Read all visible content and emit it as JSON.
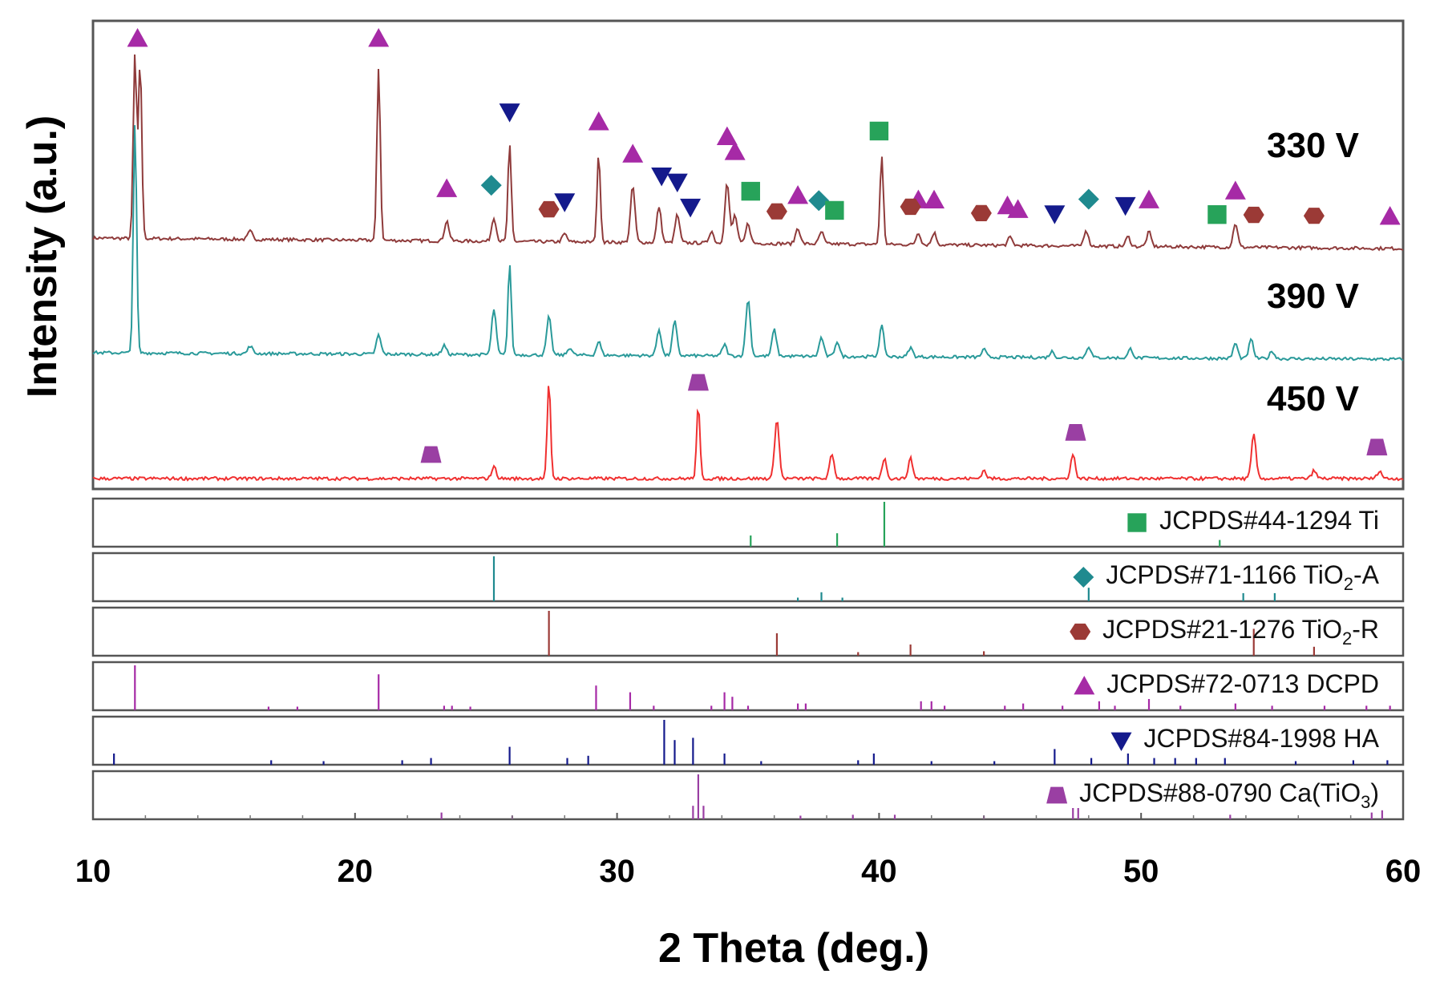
{
  "chart_data": {
    "type": "line",
    "title": "",
    "xlabel": "2 Theta (deg.)",
    "ylabel": "Intensity (a.u.)",
    "xlim": [
      10,
      60
    ],
    "x_ticks": [
      10,
      20,
      30,
      40,
      50,
      60
    ],
    "colors": {
      "330 V": "#8f3b3b",
      "390 V": "#2a9a9a",
      "450 V": "#f03030",
      "Ti": "#27a35a",
      "TiO2-A": "#1f8a8f",
      "TiO2-R": "#9b3a36",
      "DCPD": "#a62aa6",
      "HA": "#141a8c",
      "CaTiO3": "#9a3fa3"
    },
    "series": [
      {
        "name": "330 V",
        "peaks": [
          [
            11.6,
            230
          ],
          [
            11.8,
            220
          ],
          [
            16.0,
            10
          ],
          [
            20.9,
            215
          ],
          [
            23.5,
            25
          ],
          [
            25.3,
            30
          ],
          [
            25.9,
            120
          ],
          [
            28.0,
            10
          ],
          [
            29.3,
            110
          ],
          [
            30.6,
            70
          ],
          [
            31.6,
            45
          ],
          [
            32.3,
            35
          ],
          [
            33.6,
            15
          ],
          [
            34.2,
            75
          ],
          [
            34.5,
            35
          ],
          [
            35.0,
            25
          ],
          [
            36.9,
            20
          ],
          [
            37.8,
            15
          ],
          [
            40.1,
            110
          ],
          [
            41.5,
            15
          ],
          [
            42.1,
            15
          ],
          [
            45.0,
            10
          ],
          [
            47.9,
            20
          ],
          [
            49.5,
            12
          ],
          [
            50.3,
            18
          ],
          [
            53.6,
            30
          ]
        ]
      },
      {
        "name": "390 V",
        "peaks": [
          [
            11.6,
            300
          ],
          [
            16.0,
            10
          ],
          [
            20.9,
            25
          ],
          [
            23.4,
            12
          ],
          [
            25.3,
            60
          ],
          [
            25.9,
            120
          ],
          [
            27.4,
            50
          ],
          [
            28.2,
            10
          ],
          [
            29.3,
            18
          ],
          [
            31.6,
            35
          ],
          [
            32.2,
            45
          ],
          [
            34.1,
            15
          ],
          [
            35.0,
            75
          ],
          [
            36.0,
            35
          ],
          [
            37.8,
            25
          ],
          [
            38.4,
            20
          ],
          [
            40.1,
            40
          ],
          [
            41.2,
            12
          ],
          [
            44.0,
            10
          ],
          [
            46.6,
            8
          ],
          [
            48.0,
            15
          ],
          [
            49.6,
            12
          ],
          [
            53.6,
            20
          ],
          [
            54.2,
            25
          ],
          [
            55.0,
            10
          ]
        ]
      },
      {
        "name": "450 V",
        "peaks": [
          [
            25.3,
            15
          ],
          [
            27.4,
            120
          ],
          [
            33.1,
            90
          ],
          [
            36.1,
            75
          ],
          [
            38.2,
            30
          ],
          [
            40.2,
            25
          ],
          [
            41.2,
            25
          ],
          [
            44.0,
            10
          ],
          [
            47.4,
            30
          ],
          [
            54.3,
            55
          ],
          [
            56.6,
            10
          ],
          [
            59.1,
            10
          ]
        ]
      }
    ],
    "trace_labels": [
      "330 V",
      "390 V",
      "450 V"
    ],
    "markers": [
      {
        "phase": "DCPD",
        "shape": "triangle-up",
        "trace": "330 V",
        "x": [
          11.7,
          20.9,
          23.5,
          29.3,
          30.6,
          34.2,
          34.5,
          36.9,
          41.5,
          42.1,
          44.9,
          45.3,
          50.3,
          53.6,
          59.5
        ]
      },
      {
        "phase": "HA",
        "shape": "triangle-down",
        "trace": "330 V",
        "x": [
          25.9,
          28.0,
          31.7,
          32.3,
          32.8,
          46.7,
          49.4
        ]
      },
      {
        "phase": "TiO2-A",
        "shape": "diamond",
        "trace": "330 V",
        "x": [
          25.2,
          37.7,
          48.0
        ]
      },
      {
        "phase": "TiO2-R",
        "shape": "hexagon",
        "trace": "330 V",
        "x": [
          27.4,
          36.1,
          41.2,
          43.9,
          54.3,
          56.6
        ]
      },
      {
        "phase": "Ti",
        "shape": "square",
        "trace": "330 V",
        "x": [
          35.1,
          38.3,
          40.0,
          52.9
        ]
      },
      {
        "phase": "CaTiO3",
        "shape": "trapezoid",
        "trace": "450 V",
        "x": [
          22.9,
          33.1,
          47.5,
          59.0
        ]
      }
    ],
    "references": [
      {
        "id": "JCPDS#44-1294",
        "phase": "Ti",
        "formula": "Ti",
        "sub": "",
        "post": "",
        "marker": "square",
        "lines": [
          [
            35.1,
            0.25
          ],
          [
            38.4,
            0.3
          ],
          [
            40.2,
            1.0
          ],
          [
            53.0,
            0.15
          ]
        ]
      },
      {
        "id": "JCPDS#71-1166",
        "phase": "TiO2-A",
        "formula": "TiO",
        "sub": "2",
        "post": "-A",
        "marker": "diamond",
        "lines": [
          [
            25.3,
            1.0
          ],
          [
            36.9,
            0.08
          ],
          [
            37.8,
            0.2
          ],
          [
            38.6,
            0.08
          ],
          [
            48.0,
            0.3
          ],
          [
            53.9,
            0.18
          ],
          [
            55.1,
            0.18
          ]
        ]
      },
      {
        "id": "JCPDS#21-1276",
        "phase": "TiO2-R",
        "formula": "TiO",
        "sub": "2",
        "post": "-R",
        "marker": "hexagon",
        "lines": [
          [
            27.4,
            1.0
          ],
          [
            36.1,
            0.5
          ],
          [
            39.2,
            0.08
          ],
          [
            41.2,
            0.25
          ],
          [
            44.0,
            0.1
          ],
          [
            54.3,
            0.6
          ],
          [
            56.6,
            0.2
          ]
        ]
      },
      {
        "id": "JCPDS#72-0713",
        "phase": "DCPD",
        "formula": "DCPD",
        "sub": "",
        "post": "",
        "marker": "triangle-up",
        "lines": [
          [
            11.6,
            1.0
          ],
          [
            20.9,
            0.8
          ],
          [
            16.7,
            0.08
          ],
          [
            17.8,
            0.08
          ],
          [
            23.4,
            0.1
          ],
          [
            23.7,
            0.1
          ],
          [
            24.4,
            0.08
          ],
          [
            29.2,
            0.55
          ],
          [
            30.5,
            0.4
          ],
          [
            31.4,
            0.1
          ],
          [
            33.6,
            0.1
          ],
          [
            34.1,
            0.4
          ],
          [
            34.4,
            0.3
          ],
          [
            35.0,
            0.1
          ],
          [
            36.9,
            0.15
          ],
          [
            37.2,
            0.15
          ],
          [
            41.6,
            0.2
          ],
          [
            42.0,
            0.2
          ],
          [
            42.5,
            0.1
          ],
          [
            44.8,
            0.1
          ],
          [
            45.5,
            0.15
          ],
          [
            47.0,
            0.1
          ],
          [
            48.4,
            0.2
          ],
          [
            49.0,
            0.1
          ],
          [
            50.3,
            0.25
          ],
          [
            51.5,
            0.1
          ],
          [
            53.6,
            0.15
          ],
          [
            55.0,
            0.1
          ],
          [
            57.0,
            0.1
          ],
          [
            58.6,
            0.1
          ],
          [
            59.5,
            0.1
          ]
        ]
      },
      {
        "id": "JCPDS#84-1998",
        "phase": "HA",
        "formula": "HA",
        "sub": "",
        "post": "",
        "marker": "triangle-down",
        "lines": [
          [
            10.8,
            0.25
          ],
          [
            16.8,
            0.1
          ],
          [
            18.8,
            0.08
          ],
          [
            21.8,
            0.1
          ],
          [
            22.9,
            0.15
          ],
          [
            25.9,
            0.4
          ],
          [
            28.1,
            0.15
          ],
          [
            28.9,
            0.2
          ],
          [
            31.8,
            1.0
          ],
          [
            32.2,
            0.55
          ],
          [
            32.9,
            0.6
          ],
          [
            34.1,
            0.25
          ],
          [
            35.5,
            0.08
          ],
          [
            39.2,
            0.1
          ],
          [
            39.8,
            0.25
          ],
          [
            42.0,
            0.08
          ],
          [
            44.4,
            0.08
          ],
          [
            46.7,
            0.35
          ],
          [
            48.1,
            0.15
          ],
          [
            49.5,
            0.25
          ],
          [
            50.5,
            0.15
          ],
          [
            51.3,
            0.15
          ],
          [
            52.1,
            0.15
          ],
          [
            53.2,
            0.15
          ],
          [
            55.9,
            0.08
          ],
          [
            58.1,
            0.1
          ],
          [
            59.4,
            0.1
          ]
        ]
      },
      {
        "id": "JCPDS#88-0790",
        "phase": "CaTiO3",
        "formula": "Ca(TiO",
        "sub": "3",
        "post": ")",
        "marker": "trapezoid",
        "lines": [
          [
            23.3,
            0.15
          ],
          [
            26.0,
            0.08
          ],
          [
            32.9,
            0.3
          ],
          [
            33.1,
            1.0
          ],
          [
            33.3,
            0.3
          ],
          [
            37.0,
            0.08
          ],
          [
            39.0,
            0.1
          ],
          [
            40.6,
            0.1
          ],
          [
            44.0,
            0.08
          ],
          [
            47.4,
            0.25
          ],
          [
            47.6,
            0.25
          ],
          [
            53.4,
            0.1
          ],
          [
            58.8,
            0.15
          ],
          [
            59.2,
            0.2
          ]
        ]
      }
    ]
  }
}
